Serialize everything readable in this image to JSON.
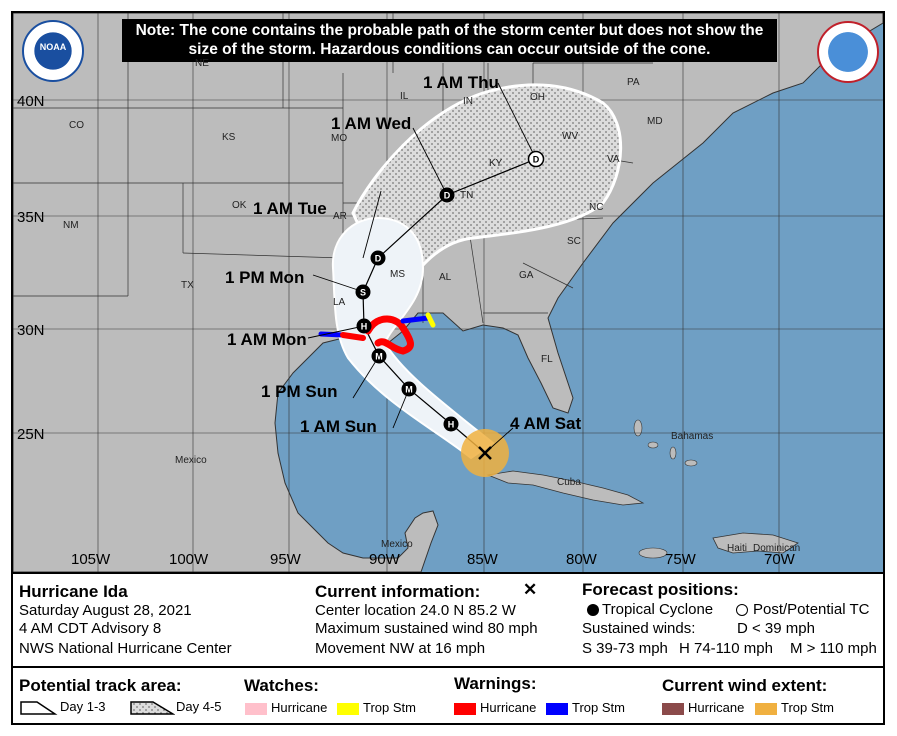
{
  "note": "Note: The cone contains the probable path of the storm center but does not show the size of the storm. Hazardous conditions can occur outside of the cone.",
  "logos": {
    "left": "NOAA",
    "right": "NATIONAL WEATHER SERVICE"
  },
  "lat_labels": [
    "40N",
    "35N",
    "30N",
    "25N"
  ],
  "lon_labels": [
    "105W",
    "100W",
    "95W",
    "90W",
    "85W",
    "80W",
    "75W",
    "70W"
  ],
  "state_labels": [
    "NE",
    "IL",
    "IN",
    "OH",
    "PA",
    "CO",
    "KS",
    "MO",
    "KY",
    "WV",
    "VA",
    "OK",
    "NM",
    "TN",
    "NC",
    "AR",
    "SC",
    "TX",
    "MS",
    "AL",
    "GA",
    "LA",
    "FL",
    "MD"
  ],
  "place_labels": {
    "mexico": "Mexico",
    "mexico2": "Mexico",
    "cuba": "Cuba",
    "bahamas": "Bahamas",
    "haiti": "Haiti",
    "dominican": "Dominican"
  },
  "forecast_points": [
    {
      "time": "4 AM Sat",
      "symbol": "X"
    },
    {
      "time": "1 AM Sun",
      "symbol": "M"
    },
    {
      "time": "1 PM Sun",
      "symbol": "M"
    },
    {
      "time": "1 AM Mon",
      "symbol": "H"
    },
    {
      "time": "1 PM Mon",
      "symbol": "S"
    },
    {
      "time": "1 AM Tue",
      "symbol": "D"
    },
    {
      "time": "1 AM Wed",
      "symbol": "D"
    },
    {
      "time": "1 AM Thu",
      "symbol": "D"
    }
  ],
  "extra_markers": [
    "H",
    "H"
  ],
  "storm": {
    "name": "Hurricane Ida",
    "date": "Saturday August 28, 2021",
    "advisory": "4 AM CDT Advisory 8",
    "center": "NWS National Hurricane Center"
  },
  "current": {
    "heading": "Current information:",
    "icon": "x-mark",
    "location": "Center location 24.0 N 85.2 W",
    "wind": "Maximum sustained wind 80 mph",
    "movement": "Movement NW at 16 mph"
  },
  "forecast": {
    "heading": "Forecast positions:",
    "tropical": "Tropical Cyclone",
    "post": "Post/Potential TC",
    "winds_label": "Sustained winds:",
    "d": "D < 39 mph",
    "s": "S 39-73 mph",
    "h": "H 74-110 mph",
    "m": "M > 110 mph"
  },
  "track_area": {
    "heading": "Potential track area:",
    "day13": "Day 1-3",
    "day45": "Day 4-5"
  },
  "watches": {
    "heading": "Watches:",
    "hurricane": "Hurricane",
    "tropstm": "Trop Stm",
    "colors": {
      "hurricane": "#ffc0cb",
      "tropstm": "#ffff00"
    }
  },
  "warnings": {
    "heading": "Warnings:",
    "hurricane": "Hurricane",
    "tropstm": "Trop Stm",
    "colors": {
      "hurricane": "#ff0000",
      "tropstm": "#0000ff"
    }
  },
  "wind_extent": {
    "heading": "Current wind extent:",
    "hurricane": "Hurricane",
    "tropstm": "Trop Stm",
    "colors": {
      "hurricane": "#8b4a4a",
      "tropstm": "#f0b040"
    }
  }
}
